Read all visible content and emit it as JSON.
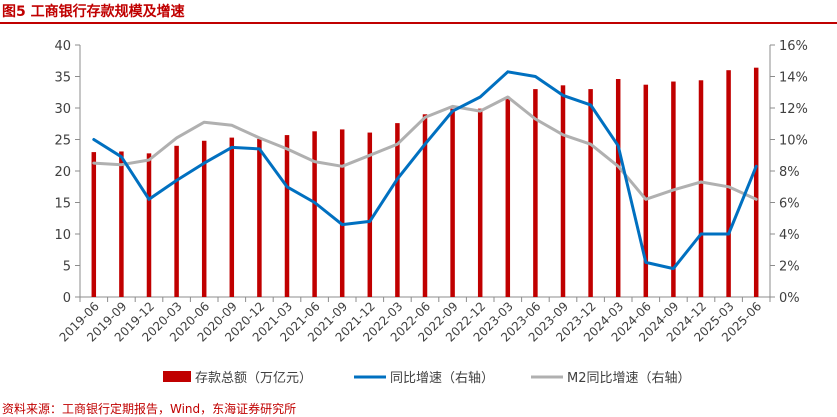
{
  "figure_title": "图5  工商银行存款规模及增速",
  "source_note": "资料来源：工商银行定期报告，Wind，东海证券研究所",
  "colors": {
    "deposits": "#c00000",
    "yoy": "#0070c0",
    "m2": "#b0b0b0",
    "axis": "#8c8c8c",
    "text": "#404040"
  },
  "chart_data": {
    "type": "bar+line",
    "title": "图5  工商银行存款规模及增速",
    "categories": [
      "2019-06",
      "2019-09",
      "2019-12",
      "2020-03",
      "2020-06",
      "2020-09",
      "2020-12",
      "2021-03",
      "2021-06",
      "2021-09",
      "2021-12",
      "2022-03",
      "2022-06",
      "2022-09",
      "2022-12",
      "2023-03",
      "2023-06",
      "2023-09",
      "2023-12",
      "2024-03",
      "2024-06",
      "2024-09",
      "2024-12",
      "2025-03",
      "2025-06"
    ],
    "left_axis": {
      "min": 0,
      "max": 40,
      "ticks": [
        "0",
        "5",
        "10",
        "15",
        "20",
        "25",
        "30",
        "35",
        "40"
      ]
    },
    "right_axis": {
      "min": 0,
      "max": 16,
      "ticks": [
        "0%",
        "2%",
        "4%",
        "6%",
        "8%",
        "10%",
        "12%",
        "14%",
        "16%"
      ]
    },
    "series": [
      {
        "name": "存款总额（万亿元）",
        "type": "bar",
        "axis": "left",
        "values": [
          23.0,
          23.1,
          22.8,
          24.0,
          24.8,
          25.3,
          25.1,
          25.7,
          26.3,
          26.6,
          26.1,
          27.6,
          29.0,
          29.9,
          29.9,
          31.8,
          33.0,
          33.6,
          33.0,
          34.6,
          33.7,
          34.2,
          34.4,
          36.0,
          36.4
        ]
      },
      {
        "name": "同比增速（右轴）",
        "type": "line",
        "axis": "right",
        "values": [
          10.0,
          8.9,
          6.2,
          7.4,
          8.5,
          9.5,
          9.4,
          7.0,
          6.0,
          4.6,
          4.8,
          7.5,
          9.7,
          11.8,
          12.7,
          14.3,
          14.0,
          12.8,
          12.2,
          9.6,
          2.2,
          1.8,
          4.0,
          4.0,
          8.3
        ]
      },
      {
        "name": "M2同比增速（右轴）",
        "type": "line",
        "axis": "right",
        "values": [
          8.5,
          8.4,
          8.7,
          10.1,
          11.1,
          10.9,
          10.1,
          9.4,
          8.6,
          8.3,
          9.0,
          9.7,
          11.4,
          12.1,
          11.8,
          12.7,
          11.3,
          10.3,
          9.7,
          8.3,
          6.2,
          6.8,
          7.3,
          7.0,
          6.2
        ]
      }
    ]
  }
}
